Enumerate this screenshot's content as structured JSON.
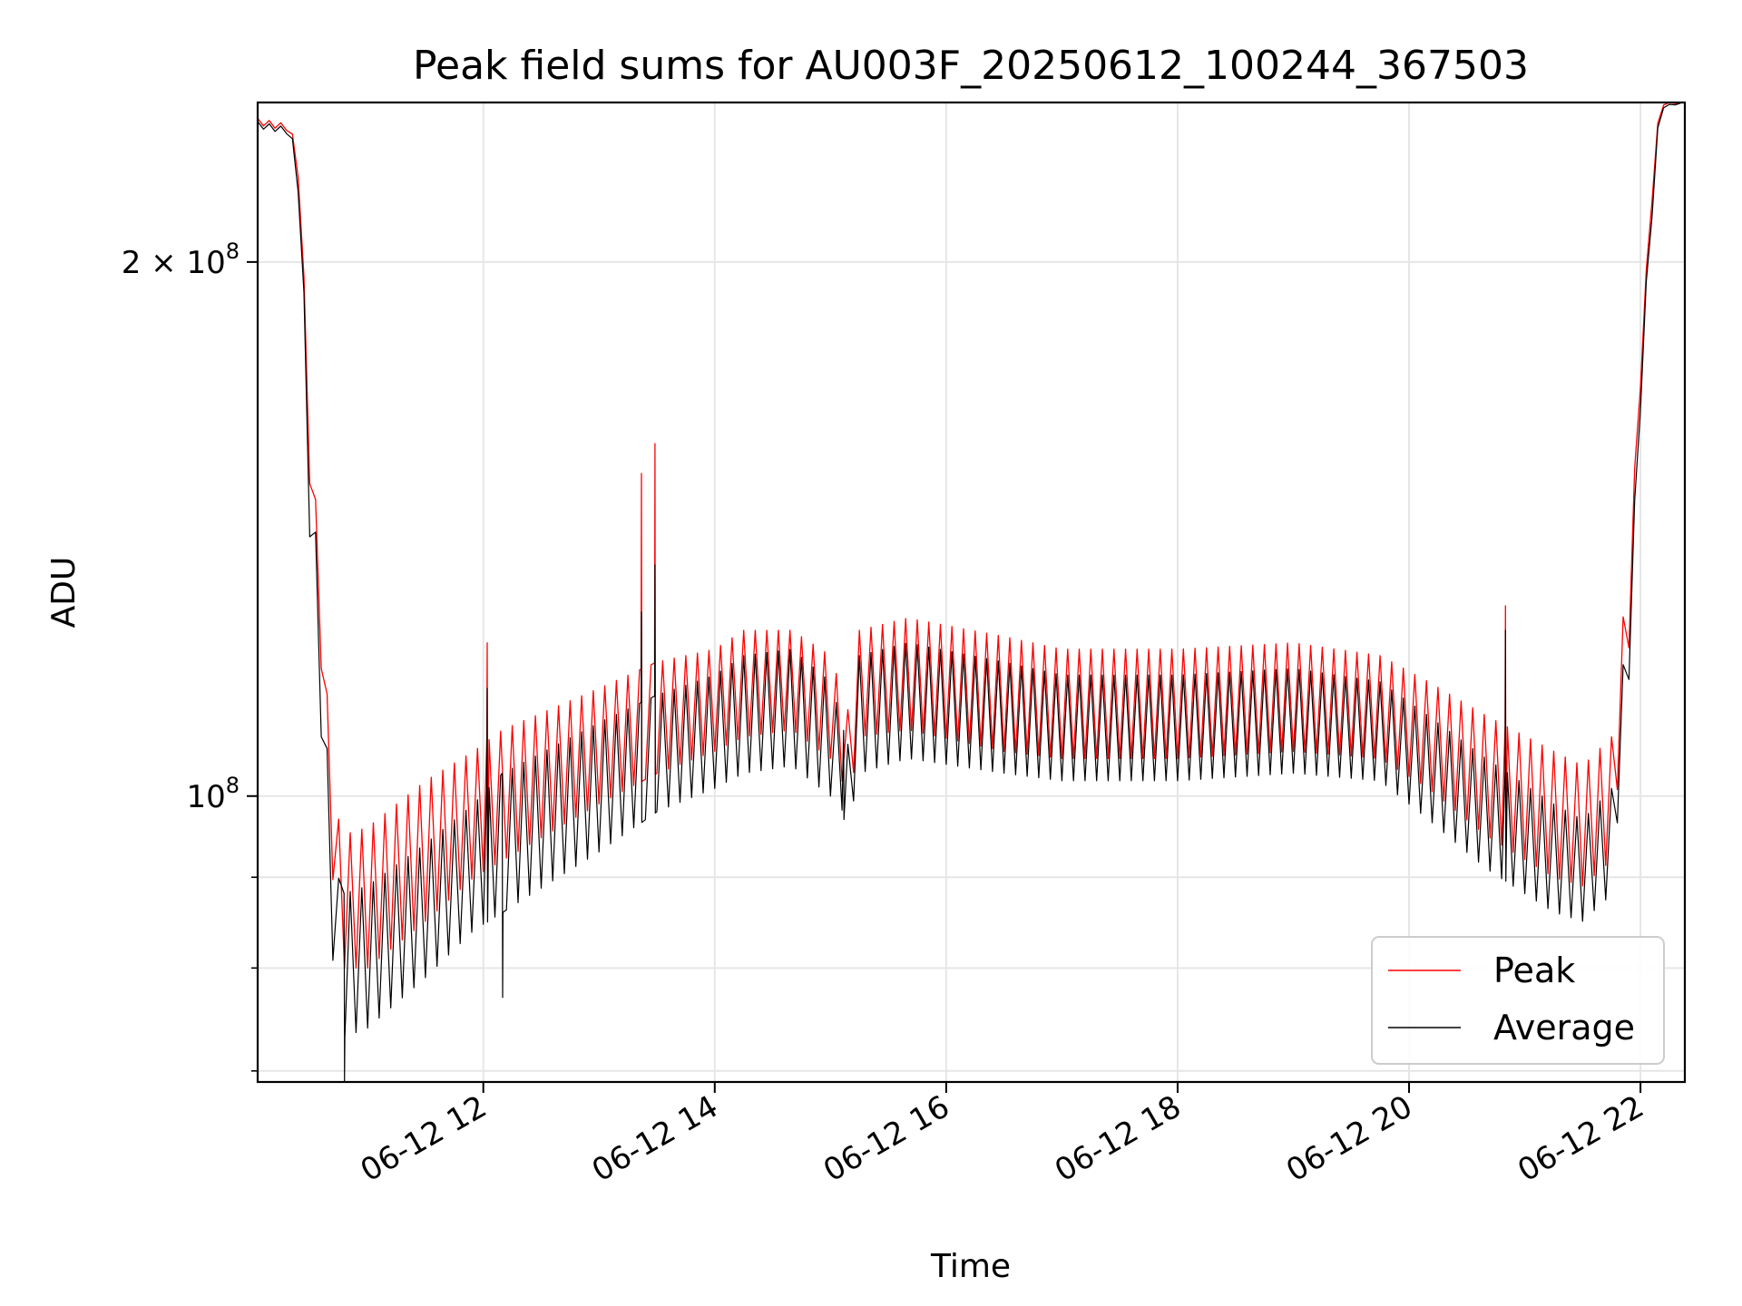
{
  "chart_data": {
    "type": "line",
    "title": "Peak field sums for AU003F_20250612_100244_367503",
    "xlabel": "Time",
    "ylabel": "ADU",
    "y_scale": "log",
    "xlim": [
      "06-12 10:03",
      "06-12 22:23"
    ],
    "ylim": [
      69000000,
      246000000
    ],
    "grid": true,
    "legend_position": "lower-right",
    "x_ticks": [
      "06-12 12",
      "06-12 14",
      "06-12 16",
      "06-12 18",
      "06-12 20",
      "06-12 22"
    ],
    "y_tick_labels": [
      {
        "value": 200000000,
        "base": "2 × 10",
        "exp": "8"
      },
      {
        "value": 100000000,
        "base": "10",
        "exp": "8"
      }
    ],
    "y_minor_ticks": [
      70000000,
      80000000,
      90000000
    ],
    "oscillation_period_minutes": 6,
    "series": [
      {
        "name": "Peak",
        "color": "#ff0000",
        "upper": [
          [
            "06-12 10:03",
            241000000
          ],
          [
            "06-12 10:20",
            239000000
          ],
          [
            "06-12 10:25",
            225000000
          ],
          [
            "06-12 10:30",
            160000000
          ],
          [
            "06-12 10:36",
            135000000
          ],
          [
            "06-12 10:40",
            108000000
          ],
          [
            "06-12 10:46",
            95000000
          ],
          [
            "06-12 11:00",
            96000000
          ],
          [
            "06-12 11:30",
            102000000
          ],
          [
            "06-12 11:55",
            106000000
          ],
          [
            "06-12 12:10",
            109000000
          ],
          [
            "06-12 13:00",
            115000000
          ],
          [
            "06-12 13:30",
            119000000
          ],
          [
            "06-12 14:00",
            121000000
          ],
          [
            "06-12 14:15",
            124000000
          ],
          [
            "06-12 14:40",
            124000000
          ],
          [
            "06-12 15:00",
            120000000
          ],
          [
            "06-12 15:10",
            111000000
          ],
          [
            "06-12 15:15",
            124000000
          ],
          [
            "06-12 15:40",
            126000000
          ],
          [
            "06-12 16:30",
            123000000
          ],
          [
            "06-12 17:00",
            121000000
          ],
          [
            "06-12 18:00",
            121000000
          ],
          [
            "06-12 19:00",
            122000000
          ],
          [
            "06-12 19:45",
            120000000
          ],
          [
            "06-12 20:10",
            116000000
          ],
          [
            "06-12 20:40",
            111000000
          ],
          [
            "06-12 21:15",
            106000000
          ],
          [
            "06-12 21:30",
            104000000
          ],
          [
            "06-12 21:45",
            108000000
          ],
          [
            "06-12 21:55",
            140000000
          ],
          [
            "06-12 22:00",
            175000000
          ],
          [
            "06-12 22:05",
            215000000
          ],
          [
            "06-12 22:10",
            246000000
          ],
          [
            "06-12 22:23",
            246000000
          ]
        ],
        "lower": [
          [
            "06-12 10:03",
            239000000
          ],
          [
            "06-12 10:20",
            237000000
          ],
          [
            "06-12 10:25",
            220000000
          ],
          [
            "06-12 10:30",
            150000000
          ],
          [
            "06-12 10:36",
            118000000
          ],
          [
            "06-12 10:40",
            95000000
          ],
          [
            "06-12 10:46",
            80000000
          ],
          [
            "06-12 11:00",
            80000000
          ],
          [
            "06-12 11:30",
            85000000
          ],
          [
            "06-12 11:55",
            90000000
          ],
          [
            "06-12 12:10",
            92000000
          ],
          [
            "06-12 13:00",
            99000000
          ],
          [
            "06-12 13:30",
            103000000
          ],
          [
            "06-12 14:00",
            106000000
          ],
          [
            "06-12 14:15",
            108000000
          ],
          [
            "06-12 14:40",
            109000000
          ],
          [
            "06-12 15:00",
            105000000
          ],
          [
            "06-12 15:10",
            100000000
          ],
          [
            "06-12 15:15",
            108000000
          ],
          [
            "06-12 15:40",
            109000000
          ],
          [
            "06-12 16:30",
            106000000
          ],
          [
            "06-12 17:00",
            105000000
          ],
          [
            "06-12 18:00",
            105000000
          ],
          [
            "06-12 19:00",
            106000000
          ],
          [
            "06-12 19:45",
            105000000
          ],
          [
            "06-12 20:10",
            101000000
          ],
          [
            "06-12 20:40",
            95000000
          ],
          [
            "06-12 21:15",
            90000000
          ],
          [
            "06-12 21:30",
            89000000
          ],
          [
            "06-12 21:45",
            92000000
          ],
          [
            "06-12 21:55",
            125000000
          ],
          [
            "06-12 22:00",
            170000000
          ],
          [
            "06-12 22:05",
            210000000
          ],
          [
            "06-12 22:10",
            245000000
          ],
          [
            "06-12 22:23",
            246000000
          ]
        ],
        "spikes": [
          [
            "06-12 12:02",
            122000000
          ],
          [
            "06-12 13:22",
            152000000
          ],
          [
            "06-12 13:29",
            158000000
          ],
          [
            "06-12 20:50",
            128000000
          ]
        ]
      },
      {
        "name": "Average",
        "color": "#000000",
        "upper": [
          [
            "06-12 10:03",
            240000000
          ],
          [
            "06-12 10:20",
            238000000
          ],
          [
            "06-12 10:25",
            222000000
          ],
          [
            "06-12 10:30",
            155000000
          ],
          [
            "06-12 10:36",
            128000000
          ],
          [
            "06-12 10:40",
            100000000
          ],
          [
            "06-12 10:46",
            88000000
          ],
          [
            "06-12 11:00",
            89000000
          ],
          [
            "06-12 11:30",
            94000000
          ],
          [
            "06-12 11:55",
            99000000
          ],
          [
            "06-12 12:10",
            103000000
          ],
          [
            "06-12 13:00",
            110000000
          ],
          [
            "06-12 13:30",
            114000000
          ],
          [
            "06-12 14:00",
            117000000
          ],
          [
            "06-12 14:15",
            120000000
          ],
          [
            "06-12 14:40",
            121000000
          ],
          [
            "06-12 15:00",
            116000000
          ],
          [
            "06-12 15:10",
            106000000
          ],
          [
            "06-12 15:15",
            120000000
          ],
          [
            "06-12 15:40",
            122000000
          ],
          [
            "06-12 16:30",
            119000000
          ],
          [
            "06-12 17:00",
            117000000
          ],
          [
            "06-12 18:00",
            117000000
          ],
          [
            "06-12 19:00",
            118000000
          ],
          [
            "06-12 19:45",
            116000000
          ],
          [
            "06-12 20:10",
            111000000
          ],
          [
            "06-12 20:40",
            105000000
          ],
          [
            "06-12 21:15",
            99000000
          ],
          [
            "06-12 21:30",
            97000000
          ],
          [
            "06-12 21:45",
            101000000
          ],
          [
            "06-12 21:55",
            132000000
          ],
          [
            "06-12 22:00",
            172000000
          ],
          [
            "06-12 22:05",
            212000000
          ],
          [
            "06-12 22:10",
            245000000
          ],
          [
            "06-12 22:23",
            246000000
          ]
        ],
        "lower": [
          [
            "06-12 10:03",
            238000000
          ],
          [
            "06-12 10:20",
            236000000
          ],
          [
            "06-12 10:25",
            215000000
          ],
          [
            "06-12 10:30",
            140000000
          ],
          [
            "06-12 10:36",
            108000000
          ],
          [
            "06-12 10:40",
            85000000
          ],
          [
            "06-12 10:46",
            73000000
          ],
          [
            "06-12 11:00",
            74000000
          ],
          [
            "06-12 11:30",
            79000000
          ],
          [
            "06-12 11:55",
            84000000
          ],
          [
            "06-12 12:10",
            86000000
          ],
          [
            "06-12 13:00",
            93000000
          ],
          [
            "06-12 13:30",
            98000000
          ],
          [
            "06-12 14:00",
            101000000
          ],
          [
            "06-12 14:15",
            103000000
          ],
          [
            "06-12 14:40",
            104000000
          ],
          [
            "06-12 15:00",
            100000000
          ],
          [
            "06-12 15:10",
            97000000
          ],
          [
            "06-12 15:15",
            103000000
          ],
          [
            "06-12 15:40",
            105000000
          ],
          [
            "06-12 16:30",
            103000000
          ],
          [
            "06-12 17:00",
            102000000
          ],
          [
            "06-12 18:00",
            102000000
          ],
          [
            "06-12 19:00",
            103000000
          ],
          [
            "06-12 19:45",
            102000000
          ],
          [
            "06-12 20:10",
            97000000
          ],
          [
            "06-12 20:40",
            91000000
          ],
          [
            "06-12 21:15",
            86000000
          ],
          [
            "06-12 21:30",
            85000000
          ],
          [
            "06-12 21:45",
            88000000
          ],
          [
            "06-12 21:55",
            120000000
          ],
          [
            "06-12 22:00",
            165000000
          ],
          [
            "06-12 22:05",
            205000000
          ],
          [
            "06-12 22:10",
            244000000
          ],
          [
            "06-12 22:23",
            246000000
          ]
        ],
        "spikes": [
          [
            "06-12 12:02",
            115000000
          ],
          [
            "06-12 13:22",
            127000000
          ],
          [
            "06-12 13:29",
            135000000
          ],
          [
            "06-12 20:50",
            124000000
          ]
        ],
        "dips": [
          [
            "06-12 10:48",
            69000000
          ],
          [
            "06-12 12:10",
            77000000
          ],
          [
            "06-12 15:07",
            97000000
          ]
        ]
      }
    ]
  }
}
